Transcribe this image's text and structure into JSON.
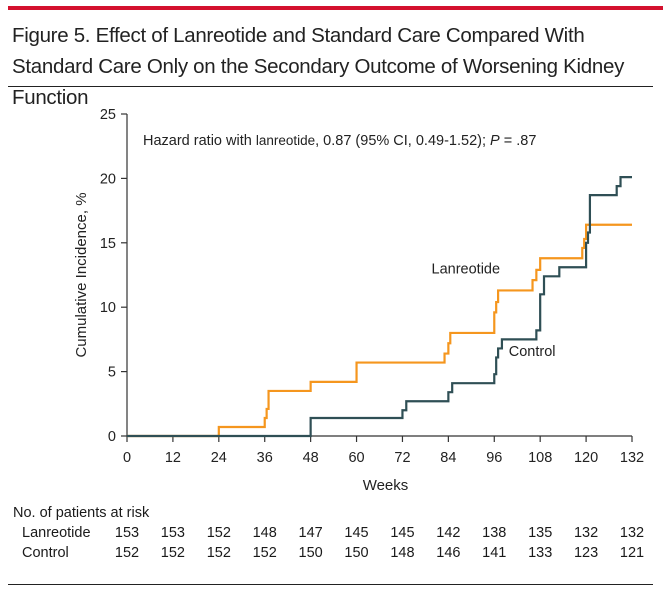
{
  "title": "Figure 5. Effect of Lanreotide and Standard Care Compared With Standard Care Only on the Secondary Outcome of Worsening Kidney Function",
  "accent_color": "#d4112e",
  "chart_data": {
    "type": "line",
    "subtype": "step",
    "xlabel": "Weeks",
    "ylabel": "Cumulative Incidence, %",
    "xlim": [
      0,
      132
    ],
    "ylim": [
      0,
      25
    ],
    "xticks": [
      0,
      12,
      24,
      36,
      48,
      60,
      72,
      84,
      96,
      108,
      120,
      132
    ],
    "yticks": [
      0,
      5,
      10,
      15,
      20,
      25
    ],
    "annotation": {
      "prefix": "Hazard ratio with ",
      "drug": "lanreotide",
      "middle": ", 0.87 (95% CI, 0.49-1.52); ",
      "p_label": "P",
      "p_value": " = .87"
    },
    "series": [
      {
        "name": "Lanreotide",
        "color": "#f5961e",
        "x": [
          0,
          24,
          36,
          36.5,
          37,
          48,
          60,
          83,
          84,
          84.5,
          96,
          96.5,
          97,
          106,
          107,
          108,
          119,
          119.5,
          120,
          132
        ],
        "y": [
          0,
          0.7,
          1.4,
          2.1,
          3.5,
          4.2,
          5.7,
          6.4,
          7.2,
          8.0,
          9.6,
          10.4,
          11.3,
          12.1,
          12.9,
          13.8,
          14.6,
          15.3,
          16.4,
          16.4
        ]
      },
      {
        "name": "Control",
        "color": "#2f4f55",
        "x": [
          0,
          48,
          72,
          73,
          84,
          85,
          96,
          96.5,
          97,
          98,
          107,
          108,
          109,
          113,
          120,
          120.5,
          121,
          128,
          129,
          132
        ],
        "y": [
          0,
          1.4,
          2.0,
          2.7,
          3.4,
          4.1,
          4.8,
          6.1,
          6.8,
          7.5,
          8.2,
          11.0,
          12.4,
          13.1,
          15.0,
          15.8,
          18.7,
          19.4,
          20.1,
          20.1
        ]
      }
    ]
  },
  "risk_table": {
    "header": "No. of patients at risk",
    "rows": [
      {
        "label": "Lanreotide",
        "values": [
          "153",
          "153",
          "152",
          "148",
          "147",
          "145",
          "145",
          "142",
          "138",
          "135",
          "132",
          "132"
        ]
      },
      {
        "label": "Control",
        "values": [
          "152",
          "152",
          "152",
          "152",
          "150",
          "150",
          "148",
          "146",
          "141",
          "133",
          "123",
          "121"
        ]
      }
    ]
  }
}
